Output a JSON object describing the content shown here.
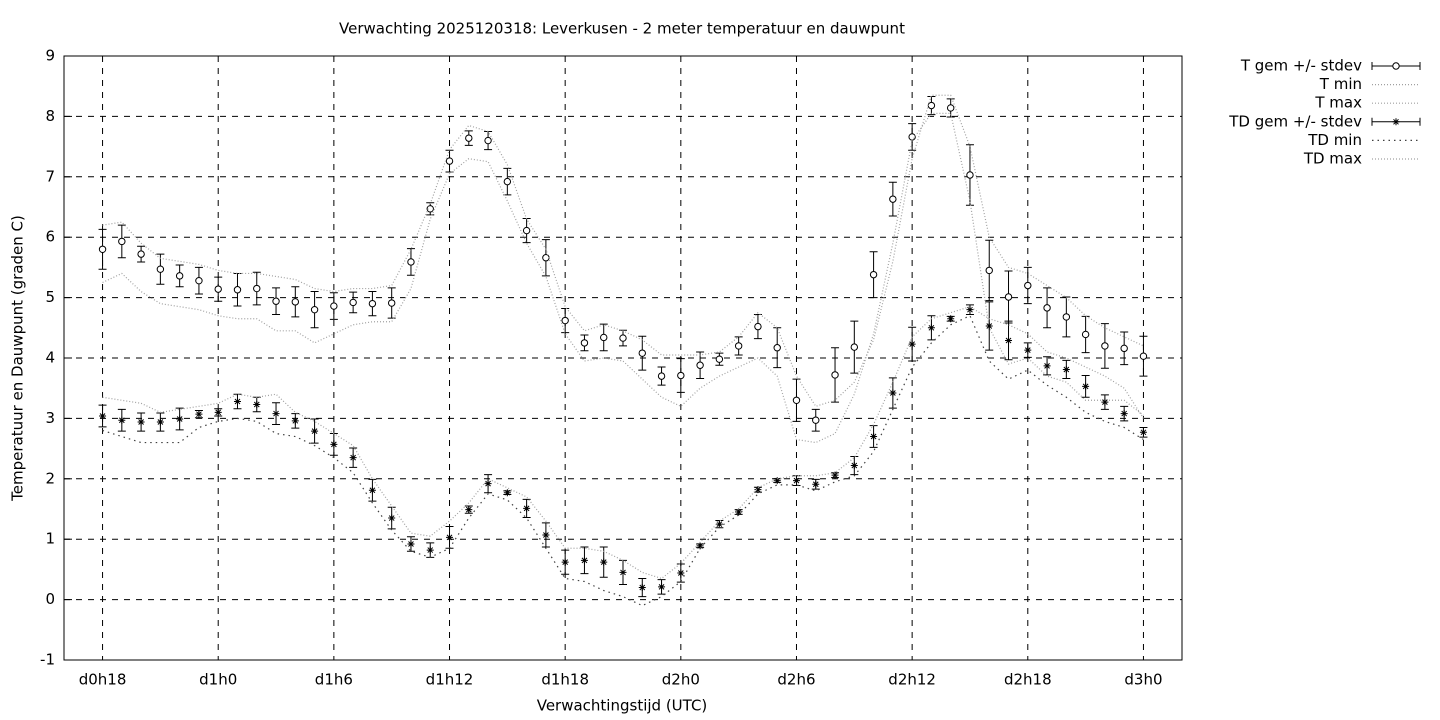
{
  "chart_data": {
    "type": "line",
    "title": "Verwachting 2025120318: Leverkusen - 2 meter temperatuur en dauwpunt",
    "x_label": "Verwachtingstijd (UTC)",
    "y_label": "Temperatuur en Dauwpunt (graden C)",
    "x": [
      18,
      19,
      20,
      21,
      22,
      23,
      24,
      25,
      26,
      27,
      28,
      29,
      30,
      31,
      32,
      33,
      34,
      35,
      36,
      37,
      38,
      39,
      40,
      41,
      42,
      43,
      44,
      45,
      46,
      47,
      48,
      49,
      50,
      51,
      52,
      53,
      54,
      55,
      56,
      57,
      58,
      59,
      60,
      61,
      62,
      63,
      64,
      65,
      66,
      67,
      68,
      69,
      70,
      71,
      72
    ],
    "xlim": [
      16,
      74
    ],
    "xticks": [
      {
        "value": 18,
        "label": "d0h18"
      },
      {
        "value": 24,
        "label": "d1h0"
      },
      {
        "value": 30,
        "label": "d1h6"
      },
      {
        "value": 36,
        "label": "d1h12"
      },
      {
        "value": 42,
        "label": "d1h18"
      },
      {
        "value": 48,
        "label": "d2h0"
      },
      {
        "value": 54,
        "label": "d2h6"
      },
      {
        "value": 60,
        "label": "d2h12"
      },
      {
        "value": 66,
        "label": "d2h18"
      },
      {
        "value": 72,
        "label": "d3h0"
      }
    ],
    "ylim": [
      -1,
      9
    ],
    "yticks": [
      -1,
      0,
      1,
      2,
      3,
      4,
      5,
      6,
      7,
      8,
      9
    ],
    "grid": true,
    "legend": "outside-top-right",
    "series": [
      {
        "name": "T gem +/- stdev",
        "color": "#000000",
        "style": "errorbars",
        "marker": "circle",
        "values": [
          5.8,
          5.93,
          5.72,
          5.47,
          5.36,
          5.28,
          5.14,
          5.13,
          5.15,
          4.94,
          4.93,
          4.8,
          4.86,
          4.92,
          4.9,
          4.91,
          5.59,
          6.47,
          7.26,
          7.64,
          7.6,
          6.92,
          6.11,
          5.66,
          4.62,
          4.25,
          4.34,
          4.33,
          4.08,
          3.7,
          3.71,
          3.88,
          3.98,
          4.2,
          4.52,
          4.17,
          3.3,
          2.97,
          3.72,
          4.18,
          5.38,
          6.63,
          7.66,
          8.18,
          8.14,
          7.03,
          5.45,
          5.01,
          5.2,
          4.83,
          4.68,
          4.39,
          4.2,
          4.16,
          4.03
        ],
        "errors": [
          0.33,
          0.27,
          0.13,
          0.25,
          0.18,
          0.22,
          0.2,
          0.27,
          0.27,
          0.22,
          0.25,
          0.3,
          0.22,
          0.17,
          0.2,
          0.25,
          0.22,
          0.1,
          0.18,
          0.12,
          0.15,
          0.22,
          0.2,
          0.3,
          0.2,
          0.13,
          0.22,
          0.13,
          0.28,
          0.15,
          0.28,
          0.22,
          0.1,
          0.15,
          0.2,
          0.33,
          0.35,
          0.18,
          0.45,
          0.43,
          0.38,
          0.28,
          0.22,
          0.15,
          0.15,
          0.5,
          0.5,
          0.43,
          0.3,
          0.33,
          0.33,
          0.3,
          0.37,
          0.27,
          0.33
        ]
      },
      {
        "name": "T min",
        "color": "#a0a0a0",
        "style": "dotted",
        "values": [
          5.25,
          5.4,
          5.1,
          4.9,
          4.85,
          4.8,
          4.7,
          4.65,
          4.65,
          4.45,
          4.45,
          4.25,
          4.4,
          4.55,
          4.6,
          4.6,
          5.15,
          6.3,
          7.05,
          7.3,
          7.25,
          6.6,
          5.9,
          5.35,
          4.4,
          3.95,
          4.0,
          3.95,
          3.65,
          3.35,
          3.2,
          3.5,
          3.7,
          3.85,
          4.0,
          3.7,
          2.65,
          2.6,
          2.75,
          3.4,
          4.4,
          5.9,
          7.6,
          8.05,
          8.05,
          6.6,
          4.5,
          3.9,
          4.0,
          3.7,
          3.6,
          3.3,
          3.3,
          3.3,
          3.05
        ]
      },
      {
        "name": "T max",
        "color": "#a0a0a0",
        "style": "dotted",
        "values": [
          6.2,
          6.25,
          5.9,
          5.65,
          5.6,
          5.55,
          5.45,
          5.4,
          5.4,
          5.35,
          5.3,
          5.15,
          5.1,
          5.15,
          5.15,
          5.2,
          5.8,
          6.55,
          7.45,
          7.85,
          7.75,
          7.2,
          6.3,
          5.8,
          4.85,
          4.45,
          4.55,
          4.45,
          4.3,
          4.05,
          4.05,
          4.05,
          4.1,
          4.35,
          4.75,
          4.5,
          3.7,
          3.2,
          3.3,
          3.6,
          4.3,
          5.6,
          7.3,
          8.35,
          8.35,
          7.5,
          6.0,
          5.5,
          5.4,
          5.2,
          5.0,
          4.7,
          4.5,
          4.35,
          4.2
        ]
      },
      {
        "name": "TD gem +/- stdev",
        "color": "#000000",
        "style": "errorbars",
        "marker": "star",
        "values": [
          3.04,
          2.97,
          2.94,
          2.94,
          2.99,
          3.07,
          3.1,
          3.28,
          3.23,
          3.08,
          2.96,
          2.79,
          2.57,
          2.35,
          1.81,
          1.35,
          0.92,
          0.82,
          1.03,
          1.49,
          1.92,
          1.77,
          1.51,
          1.07,
          0.62,
          0.65,
          0.62,
          0.45,
          0.2,
          0.21,
          0.44,
          0.89,
          1.25,
          1.45,
          1.82,
          1.97,
          1.97,
          1.91,
          2.06,
          2.22,
          2.7,
          3.42,
          4.23,
          4.5,
          4.65,
          4.8,
          4.53,
          4.29,
          4.13,
          3.87,
          3.81,
          3.53,
          3.27,
          3.08,
          2.77
        ],
        "errors": [
          0.18,
          0.18,
          0.15,
          0.15,
          0.18,
          0.06,
          0.06,
          0.12,
          0.12,
          0.18,
          0.12,
          0.2,
          0.18,
          0.16,
          0.18,
          0.18,
          0.12,
          0.12,
          0.18,
          0.06,
          0.15,
          0.03,
          0.15,
          0.2,
          0.2,
          0.22,
          0.25,
          0.2,
          0.15,
          0.12,
          0.15,
          0.03,
          0.06,
          0.04,
          0.04,
          0.03,
          0.08,
          0.08,
          0.04,
          0.15,
          0.18,
          0.25,
          0.28,
          0.2,
          0.04,
          0.08,
          0.4,
          0.32,
          0.12,
          0.15,
          0.15,
          0.18,
          0.12,
          0.12,
          0.08
        ]
      },
      {
        "name": "TD min",
        "color": "#404040",
        "style": "dotted",
        "values": [
          2.8,
          2.7,
          2.6,
          2.6,
          2.6,
          2.85,
          2.95,
          3.0,
          2.95,
          2.75,
          2.7,
          2.55,
          2.35,
          2.1,
          1.6,
          1.15,
          0.8,
          0.7,
          0.85,
          1.35,
          1.75,
          1.65,
          1.35,
          0.85,
          0.35,
          0.3,
          0.15,
          0.05,
          -0.1,
          0.05,
          0.3,
          0.85,
          1.2,
          1.4,
          1.75,
          1.9,
          1.9,
          1.8,
          1.95,
          2.05,
          2.45,
          3.15,
          3.85,
          4.25,
          4.55,
          4.7,
          3.95,
          3.65,
          3.8,
          3.55,
          3.35,
          3.1,
          2.95,
          2.85,
          2.65
        ]
      },
      {
        "name": "TD max",
        "color": "#a0a0a0",
        "style": "dotted",
        "values": [
          3.35,
          3.3,
          3.25,
          3.1,
          3.15,
          3.2,
          3.25,
          3.4,
          3.35,
          3.4,
          3.1,
          2.95,
          2.75,
          2.55,
          2.0,
          1.55,
          1.1,
          1.05,
          1.3,
          1.6,
          2.0,
          1.85,
          1.7,
          1.3,
          0.85,
          0.85,
          0.8,
          0.65,
          0.45,
          0.35,
          0.6,
          0.95,
          1.3,
          1.5,
          1.85,
          2.0,
          2.05,
          2.05,
          2.1,
          2.35,
          2.9,
          3.6,
          4.35,
          4.65,
          4.75,
          4.85,
          4.65,
          4.55,
          4.4,
          4.1,
          4.0,
          3.85,
          3.7,
          3.5,
          3.0
        ]
      }
    ]
  }
}
